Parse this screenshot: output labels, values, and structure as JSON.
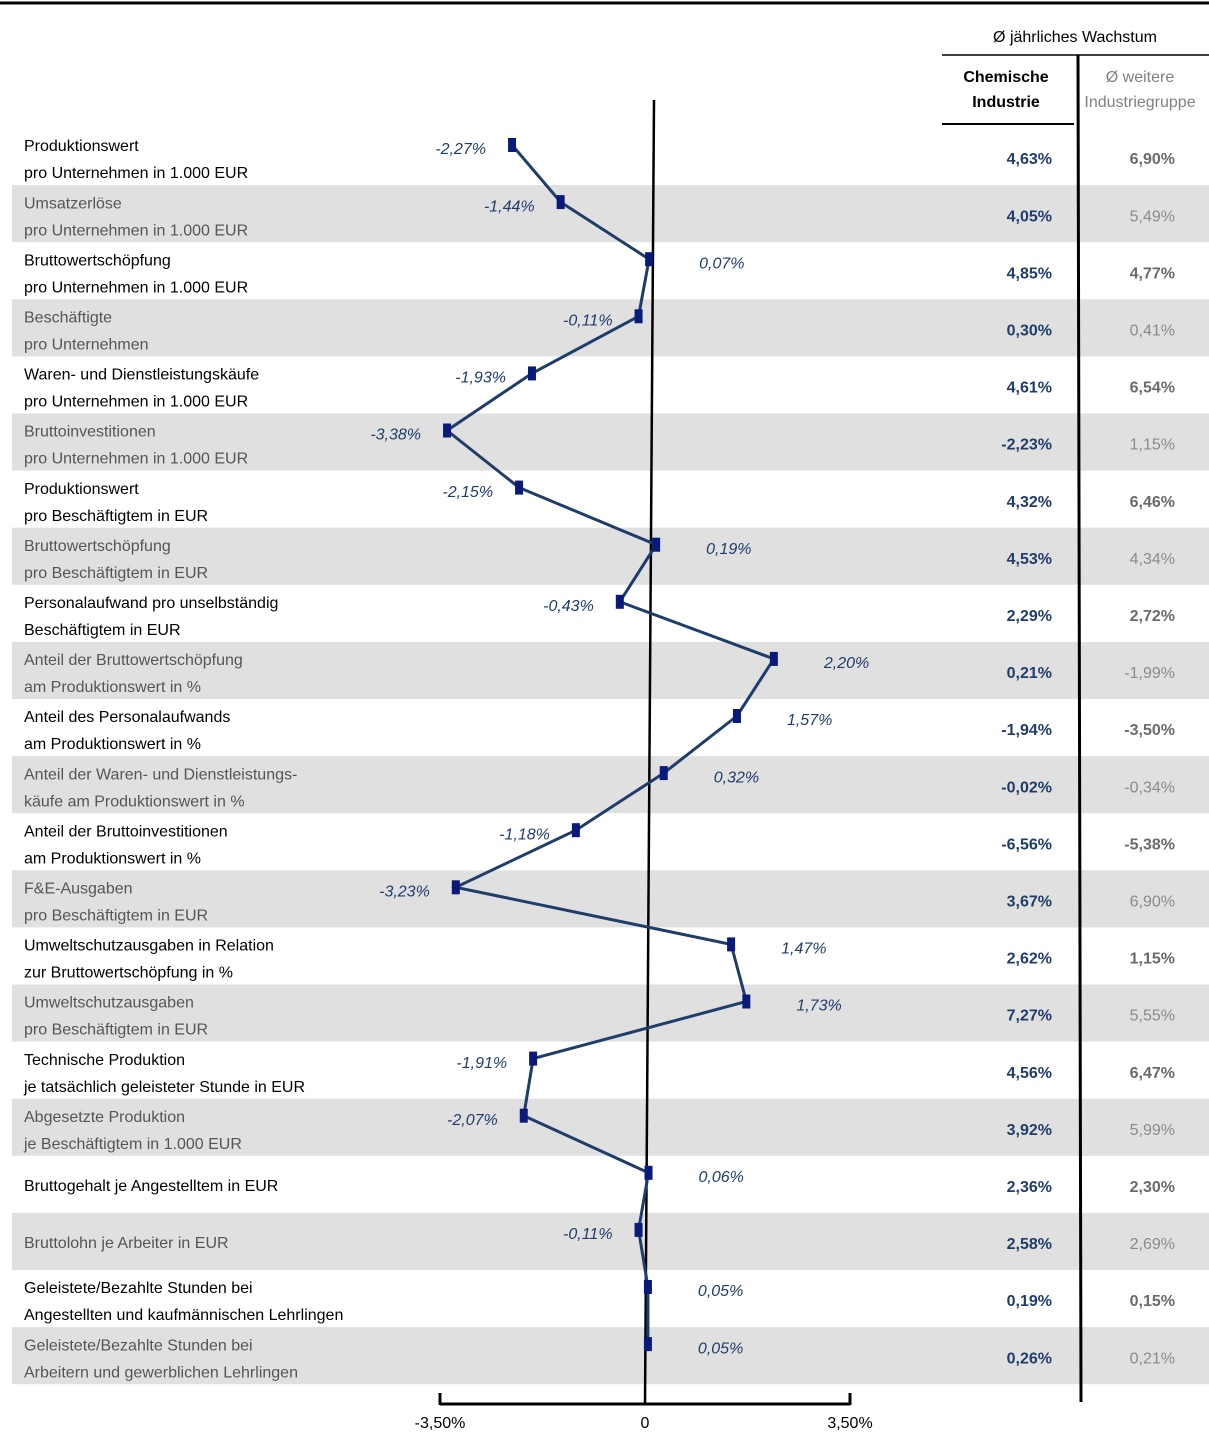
{
  "chart_data": {
    "type": "line",
    "header": "Ø jährliches Wachstum",
    "categories": [
      [
        "Produktionswert",
        "pro Unternehmen in 1.000 EUR"
      ],
      [
        "Umsatzerlöse",
        "pro Unternehmen in 1.000 EUR"
      ],
      [
        "Bruttowertschöpfung",
        "pro Unternehmen in 1.000 EUR"
      ],
      [
        "Beschäftigte",
        "pro Unternehmen"
      ],
      [
        "Waren- und Dienstleistungskäufe",
        "pro Unternehmen in 1.000 EUR"
      ],
      [
        "Bruttoinvestitionen",
        "pro Unternehmen in 1.000 EUR"
      ],
      [
        "Produktionswert",
        "pro Beschäftigtem in EUR"
      ],
      [
        "Bruttowertschöpfung",
        "pro Beschäftigtem in EUR"
      ],
      [
        "Personalaufwand pro unselbständig",
        "Beschäftigtem in EUR"
      ],
      [
        "Anteil der Bruttowertschöpfung",
        "am Produktionswert in %"
      ],
      [
        "Anteil des Personalaufwands",
        "am Produktionswert in %"
      ],
      [
        "Anteil der Waren- und Dienstleistungs-",
        "käufe am Produktionswert in %"
      ],
      [
        "Anteil der Bruttoinvestitionen",
        "am Produktionswert in %"
      ],
      [
        "F&E-Ausgaben",
        "pro Beschäftigtem in EUR"
      ],
      [
        "Umweltschutzausgaben in Relation",
        "zur Bruttowertschöpfung in %"
      ],
      [
        "Umweltschutzausgaben",
        "pro Beschäftigtem in EUR"
      ],
      [
        "Technische Produktion",
        "je tatsächlich geleisteter Stunde in EUR"
      ],
      [
        "Abgesetzte Produktion",
        "je Beschäftigtem in 1.000 EUR"
      ],
      [
        "Bruttogehalt je Angestelltem in EUR"
      ],
      [
        "Bruttolohn je Arbeiter in EUR"
      ],
      [
        "Geleistete/Bezahlte Stunden bei",
        "Angestellten und kaufmännischen Lehrlingen"
      ],
      [
        "Geleistete/Bezahlte Stunden bei",
        "Arbeitern und gewerblichen Lehrlingen"
      ]
    ],
    "values": [
      -2.27,
      -1.44,
      0.07,
      -0.11,
      -1.93,
      -3.38,
      -2.15,
      0.19,
      -0.43,
      2.2,
      1.57,
      0.32,
      -1.18,
      -3.23,
      1.47,
      1.73,
      -1.91,
      -2.07,
      0.06,
      -0.11,
      0.05,
      0.05
    ],
    "value_labels": [
      "-2,27%",
      "-1,44%",
      "0,07%",
      "-0,11%",
      "-1,93%",
      "-3,38%",
      "-2,15%",
      "0,19%",
      "-0,43%",
      "2,20%",
      "1,57%",
      "0,32%",
      "-1,18%",
      "-3,23%",
      "1,47%",
      "1,73%",
      "-1,91%",
      "-2,07%",
      "0,06%",
      "-0,11%",
      "0,05%",
      "0,05%"
    ],
    "color": "#1f3d6b",
    "marker_color": "#0a1a7a",
    "xlim": [
      -3.5,
      3.5
    ],
    "xticks": [
      {
        "value": -3.5,
        "label": "-3,50%"
      },
      0,
      {
        "value": 3.5,
        "label": "3,50%"
      }
    ],
    "columns": [
      {
        "name": [
          "Chemische",
          "Industrie"
        ],
        "values": [
          "4,63%",
          "4,05%",
          "4,85%",
          "0,30%",
          "4,61%",
          "-2,23%",
          "4,32%",
          "4,53%",
          "2,29%",
          "0,21%",
          "-1,94%",
          "-0,02%",
          "-6,56%",
          "3,67%",
          "2,62%",
          "7,27%",
          "4,56%",
          "3,92%",
          "2,36%",
          "2,58%",
          "0,19%",
          "0,26%"
        ]
      },
      {
        "name": [
          "Ø weitere",
          "Industriegruppe"
        ],
        "values": [
          "6,90%",
          "5,49%",
          "4,77%",
          "0,41%",
          "6,54%",
          "1,15%",
          "6,46%",
          "4,34%",
          "2,72%",
          "-1,99%",
          "-3,50%",
          "-0,34%",
          "-5,38%",
          "6,90%",
          "1,15%",
          "5,55%",
          "6,47%",
          "5,99%",
          "2,30%",
          "2,69%",
          "0,15%",
          "0,21%"
        ]
      }
    ]
  }
}
